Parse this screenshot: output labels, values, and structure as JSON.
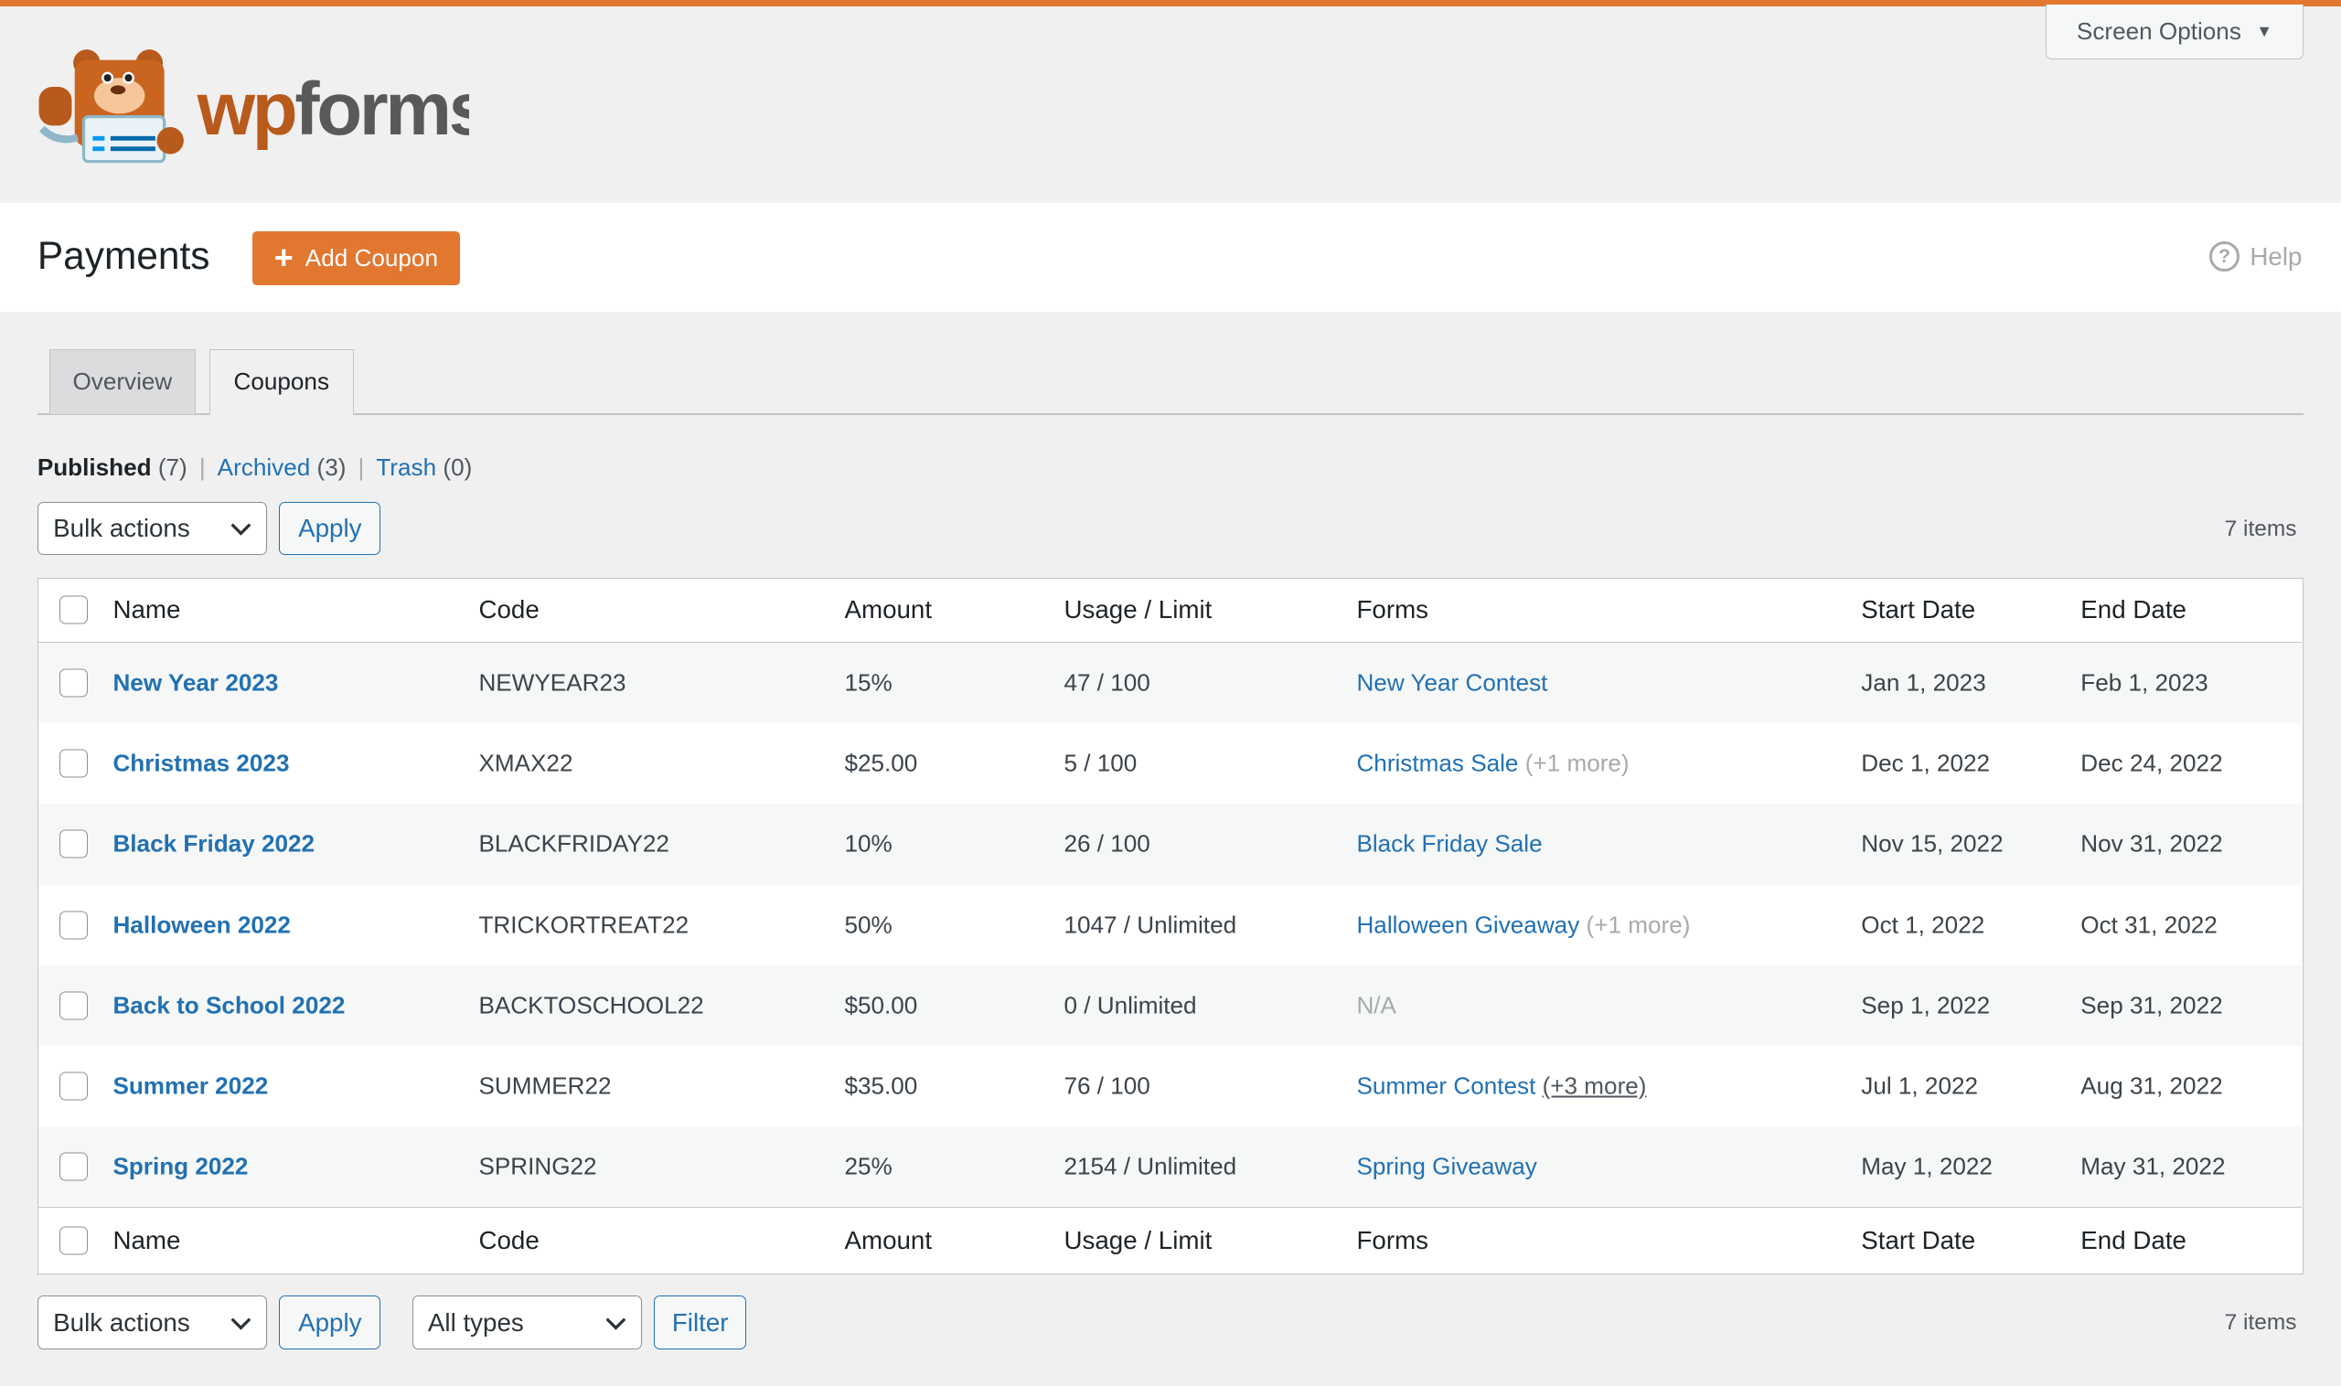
{
  "brand": {
    "name": "wpforms",
    "accent": "#e27730",
    "link_color": "#2271b1"
  },
  "screen_options": "Screen Options",
  "page_title": "Payments",
  "add_coupon": "Add Coupon",
  "help": "Help",
  "tabs": [
    {
      "label": "Overview",
      "active": false
    },
    {
      "label": "Coupons",
      "active": true
    }
  ],
  "status_filters": {
    "published": "Published",
    "published_count": "(7)",
    "archived": "Archived",
    "archived_count": "(3)",
    "trash": "Trash",
    "trash_count": "(0)"
  },
  "bulk_actions": "Bulk actions",
  "apply": "Apply",
  "items_count": "7 items",
  "types_filter": "All types",
  "filter": "Filter",
  "columns": {
    "name": "Name",
    "code": "Code",
    "amount": "Amount",
    "usage": "Usage / Limit",
    "forms": "Forms",
    "start": "Start Date",
    "end": "End Date"
  },
  "rows": [
    {
      "name": "New Year 2023",
      "code": "NEWYEAR23",
      "amount": "15%",
      "usage": "47 / 100",
      "form": "New Year Contest",
      "more": "",
      "start": "Jan 1, 2023",
      "end": "Feb 1, 2023"
    },
    {
      "name": "Christmas 2023",
      "code": "XMAX22",
      "amount": "$25.00",
      "usage": "5 / 100",
      "form": "Christmas Sale",
      "more": "(+1 more)",
      "start": "Dec 1, 2022",
      "end": "Dec 24, 2022"
    },
    {
      "name": "Black Friday 2022",
      "code": "BLACKFRIDAY22",
      "amount": "10%",
      "usage": "26 / 100",
      "form": "Black Friday Sale",
      "more": "",
      "start": "Nov 15, 2022",
      "end": "Nov 31, 2022"
    },
    {
      "name": "Halloween 2022",
      "code": "TRICKORTREAT22",
      "amount": "50%",
      "usage": "1047 / Unlimited",
      "form": "Halloween Giveaway",
      "more": "(+1 more)",
      "start": "Oct 1, 2022",
      "end": "Oct 31, 2022"
    },
    {
      "name": "Back to School 2022",
      "code": "BACKTOSCHOOL22",
      "amount": "$50.00",
      "usage": "0 / Unlimited",
      "form": "N/A",
      "more": "",
      "start": "Sep 1, 2022",
      "end": "Sep 31, 2022"
    },
    {
      "name": "Summer 2022",
      "code": "SUMMER22",
      "amount": "$35.00",
      "usage": "76 / 100",
      "form": "Summer Contest",
      "more": "(+3 more)",
      "start": "Jul 1, 2022",
      "end": "Aug 31, 2022"
    },
    {
      "name": "Spring 2022",
      "code": "SPRING22",
      "amount": "25%",
      "usage": "2154 / Unlimited",
      "form": "Spring Giveaway",
      "more": "",
      "start": "May 1, 2022",
      "end": "May 31, 2022"
    }
  ]
}
